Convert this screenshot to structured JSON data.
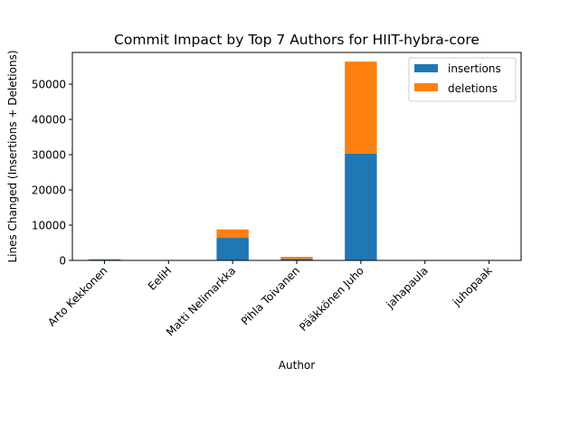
{
  "chart_data": {
    "type": "bar",
    "stacked": true,
    "title": "Commit Impact by Top 7 Authors for HIIT-hybra-core",
    "xlabel": "Author",
    "ylabel": "Lines Changed (Insertions + Deletions)",
    "categories": [
      "Arto Kekkonen",
      "EeliH",
      "Matti Nelimarkka",
      "Pihla Toivanen",
      "Pääkkönen Juho",
      "jahapaula",
      "juhopaak"
    ],
    "series": [
      {
        "name": "insertions",
        "color": "#1f77b4",
        "values": [
          250,
          20,
          6400,
          450,
          30300,
          30,
          40
        ]
      },
      {
        "name": "deletions",
        "color": "#ff7f0e",
        "values": [
          80,
          10,
          2400,
          550,
          26100,
          10,
          10
        ]
      }
    ],
    "ylim": [
      0,
      59000
    ],
    "yticks": [
      0,
      10000,
      20000,
      30000,
      40000,
      50000
    ],
    "legend_position": "top-right",
    "grid": false
  }
}
